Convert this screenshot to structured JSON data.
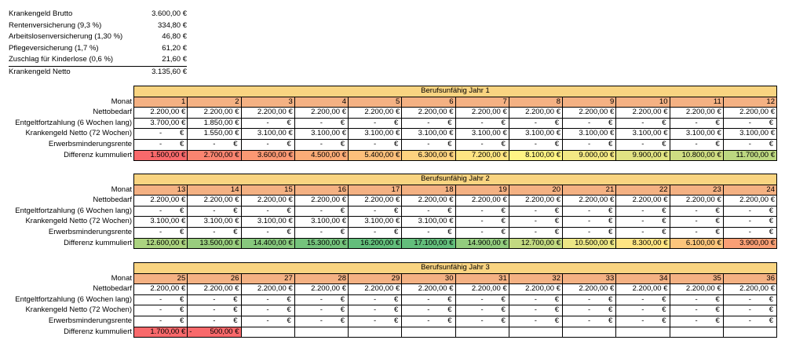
{
  "summary": [
    {
      "label": "Krankengeld Brutto",
      "value": "3.600,00 €"
    },
    {
      "label": "Rentenversicherung (9,3 %)",
      "value": "334,80 €"
    },
    {
      "label": "Arbeitslosenversicherung (1,30 %)",
      "value": "46,80 €"
    },
    {
      "label": "Pflegeversicherung (1,7 %)",
      "value": "61,20 €"
    },
    {
      "label": "Zuschlag für Kinderlose (0,6 %)",
      "value": "21,60 €"
    },
    {
      "label": "Krankengeld Netto",
      "value": "3.135,60 €"
    }
  ],
  "row_labels": {
    "monat": "Monat",
    "nettobedarf": "Nettobedarf",
    "entgelt": "Entgeltfortzahlung (6 Wochen lang)",
    "krankengeld": "Krankengeld Netto (72 Wochen)",
    "erwerb": "Erwerbsminderungsrente",
    "differenz": "Differenz kummuliert"
  },
  "zero_text": "-",
  "euro": "€",
  "blocks": [
    {
      "title": "Berufsunfähig Jahr 1",
      "months": [
        "1",
        "2",
        "3",
        "4",
        "5",
        "6",
        "7",
        "8",
        "9",
        "10",
        "11",
        "12"
      ],
      "nettobedarf": [
        "2.200,00 €",
        "2.200,00 €",
        "2.200,00 €",
        "2.200,00 €",
        "2.200,00 €",
        "2.200,00 €",
        "2.200,00 €",
        "2.200,00 €",
        "2.200,00 €",
        "2.200,00 €",
        "2.200,00 €",
        "2.200,00 €"
      ],
      "entgelt": [
        "3.700,00 €",
        "1.850,00 €",
        "-",
        "-",
        "-",
        "-",
        "-",
        "-",
        "-",
        "-",
        "-",
        "-"
      ],
      "krankengeld": [
        "-",
        "1.550,00 €",
        "3.100,00 €",
        "3.100,00 €",
        "3.100,00 €",
        "3.100,00 €",
        "3.100,00 €",
        "3.100,00 €",
        "3.100,00 €",
        "3.100,00 €",
        "3.100,00 €",
        "3.100,00 €"
      ],
      "erwerb": [
        "-",
        "-",
        "-",
        "-",
        "-",
        "-",
        "-",
        "-",
        "-",
        "-",
        "-",
        "-"
      ],
      "differenz": [
        {
          "value": "1.500,00 €",
          "color": "#f8696b"
        },
        {
          "value": "2.700,00 €",
          "color": "#f98470"
        },
        {
          "value": "3.600,00 €",
          "color": "#fa9873"
        },
        {
          "value": "4.500,00 €",
          "color": "#fbac77"
        },
        {
          "value": "5.400,00 €",
          "color": "#fcbf7b"
        },
        {
          "value": "6.300,00 €",
          "color": "#fdd27f"
        },
        {
          "value": "7.200,00 €",
          "color": "#fee582"
        },
        {
          "value": "8.100,00 €",
          "color": "#fff484"
        },
        {
          "value": "9.000,00 €",
          "color": "#f3e884"
        },
        {
          "value": "9.900,00 €",
          "color": "#e1e383"
        },
        {
          "value": "10.800,00 €",
          "color": "#cfdd82"
        },
        {
          "value": "11.700,00 €",
          "color": "#bdd881"
        }
      ]
    },
    {
      "title": "Berufsunfähig Jahr 2",
      "months": [
        "13",
        "14",
        "15",
        "16",
        "17",
        "18",
        "19",
        "20",
        "21",
        "22",
        "23",
        "24"
      ],
      "nettobedarf": [
        "2.200,00 €",
        "2.200,00 €",
        "2.200,00 €",
        "2.200,00 €",
        "2.200,00 €",
        "2.200,00 €",
        "2.200,00 €",
        "2.200,00 €",
        "2.200,00 €",
        "2.200,00 €",
        "2.200,00 €",
        "2.200,00 €"
      ],
      "entgelt": [
        "-",
        "-",
        "-",
        "-",
        "-",
        "-",
        "-",
        "-",
        "-",
        "-",
        "-",
        "-"
      ],
      "krankengeld": [
        "3.100,00 €",
        "3.100,00 €",
        "3.100,00 €",
        "3.100,00 €",
        "3.100,00 €",
        "3.100,00 €",
        "-",
        "-",
        "-",
        "-",
        "-",
        "-"
      ],
      "erwerb": [
        "-",
        "-",
        "-",
        "-",
        "-",
        "-",
        "-",
        "-",
        "-",
        "-",
        "-",
        "-"
      ],
      "differenz": [
        {
          "value": "12.600,00 €",
          "color": "#abd380"
        },
        {
          "value": "13.500,00 €",
          "color": "#99cd7e"
        },
        {
          "value": "14.400,00 €",
          "color": "#87c87d"
        },
        {
          "value": "15.300,00 €",
          "color": "#75c37c"
        },
        {
          "value": "16.200,00 €",
          "color": "#63be7b"
        },
        {
          "value": "17.100,00 €",
          "color": "#63be7b"
        },
        {
          "value": "14.900,00 €",
          "color": "#93cc7e"
        },
        {
          "value": "12.700,00 €",
          "color": "#c2d981"
        },
        {
          "value": "10.500,00 €",
          "color": "#ece685"
        },
        {
          "value": "8.300,00 €",
          "color": "#ffe483"
        },
        {
          "value": "6.100,00 €",
          "color": "#fcc57c"
        },
        {
          "value": "3.900,00 €",
          "color": "#fa9f75"
        }
      ]
    },
    {
      "title": "Berufsunfähig Jahr 3",
      "months": [
        "25",
        "26",
        "27",
        "28",
        "29",
        "30",
        "31",
        "32",
        "33",
        "34",
        "35",
        "36"
      ],
      "nettobedarf": [
        "2.200,00 €",
        "2.200,00 €",
        "2.200,00 €",
        "2.200,00 €",
        "2.200,00 €",
        "2.200,00 €",
        "2.200,00 €",
        "2.200,00 €",
        "2.200,00 €",
        "2.200,00 €",
        "2.200,00 €",
        "2.200,00 €"
      ],
      "entgelt": [
        "-",
        "-",
        "-",
        "-",
        "-",
        "-",
        "-",
        "-",
        "-",
        "-",
        "-",
        "-"
      ],
      "krankengeld": [
        "-",
        "-",
        "-",
        "-",
        "-",
        "-",
        "-",
        "-",
        "-",
        "-",
        "-",
        "-"
      ],
      "erwerb": [
        "-",
        "-",
        "-",
        "-",
        "-",
        "-",
        "-",
        "-",
        "-",
        "-",
        "-",
        "-"
      ],
      "differenz": [
        {
          "value": "1.700,00 €",
          "color": "#f8696b"
        },
        {
          "value": "-",
          "amount": "500,00 €",
          "color": "#f8696b"
        },
        {
          "value": "",
          "color": ""
        },
        {
          "value": "",
          "color": ""
        },
        {
          "value": "",
          "color": ""
        },
        {
          "value": "",
          "color": ""
        },
        {
          "value": "",
          "color": ""
        },
        {
          "value": "",
          "color": ""
        },
        {
          "value": "",
          "color": ""
        },
        {
          "value": "",
          "color": ""
        },
        {
          "value": "",
          "color": ""
        },
        {
          "value": "",
          "color": ""
        }
      ]
    }
  ]
}
